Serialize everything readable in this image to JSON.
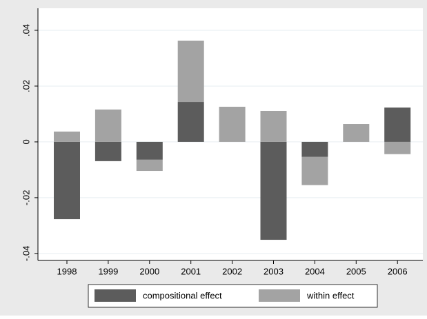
{
  "chart_data": {
    "type": "stacked-bar",
    "categories": [
      "1998",
      "1999",
      "2000",
      "2001",
      "2002",
      "2003",
      "2004",
      "2005",
      "2006"
    ],
    "series": [
      {
        "name": "compositional effect",
        "color": "#5c5c5c",
        "values": [
          -0.0277,
          -0.0069,
          -0.0064,
          0.0143,
          0.0,
          -0.0351,
          -0.0054,
          0.0,
          0.0123
        ]
      },
      {
        "name": "within effect",
        "color": "#a3a3a3",
        "values": [
          0.0037,
          0.0116,
          -0.004,
          0.022,
          0.0126,
          0.0111,
          -0.0101,
          0.0064,
          -0.0044
        ]
      }
    ],
    "ylim": [
      -0.0425,
      0.0479
    ],
    "yticks": [
      {
        "value": -0.04,
        "label": "-.04"
      },
      {
        "value": -0.02,
        "label": "-.02"
      },
      0,
      {
        "value": 0.02,
        "label": ".02"
      },
      {
        "value": 0.04,
        "label": ".04"
      }
    ],
    "grid": true
  }
}
